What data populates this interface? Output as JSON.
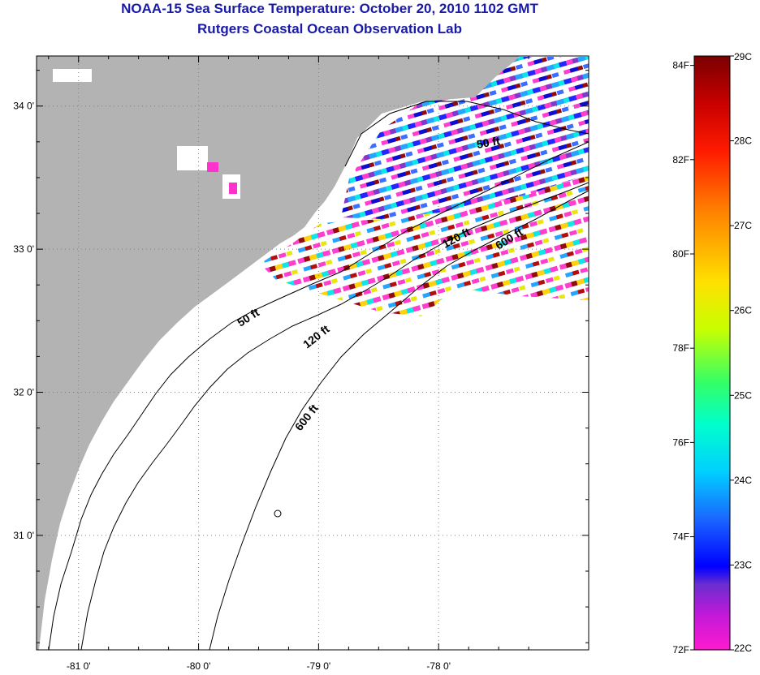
{
  "header": {
    "title": "NOAA-15 Sea Surface Temperature:  October 20, 2010 1102 GMT",
    "subtitle": "Rutgers Coastal Ocean Observation Lab"
  },
  "map": {
    "lon_range": [
      -81.35,
      -76.75
    ],
    "lat_range": [
      30.2,
      34.35
    ],
    "lon_ticks": [
      {
        "value": -81,
        "label": "-81 0'"
      },
      {
        "value": -80,
        "label": "-80 0'"
      },
      {
        "value": -79,
        "label": "-79 0'"
      },
      {
        "value": -78,
        "label": "-78 0'"
      }
    ],
    "lat_ticks": [
      {
        "value": 34,
        "label": "34 0'"
      },
      {
        "value": 33,
        "label": "33 0'"
      },
      {
        "value": 32,
        "label": "32 0'"
      },
      {
        "value": 31,
        "label": "31 0'"
      }
    ],
    "contour_labels": [
      {
        "text": "50 ft"
      },
      {
        "text": "50 ft"
      },
      {
        "text": "120 ft"
      },
      {
        "text": "120 ft"
      },
      {
        "text": "600 ft"
      },
      {
        "text": "600 ft"
      }
    ],
    "colors": {
      "land": "#b3b3b3",
      "ocean": "#ffffff",
      "grid": "#808080"
    }
  },
  "colorbar": {
    "celsius_labels": [
      "29C",
      "28C",
      "27C",
      "26C",
      "25C",
      "24C",
      "23C",
      "22C"
    ],
    "fahrenheit_labels": [
      "84F",
      "82F",
      "80F",
      "78F",
      "76F",
      "74F",
      "72F"
    ],
    "range_c": [
      22,
      29
    ]
  }
}
